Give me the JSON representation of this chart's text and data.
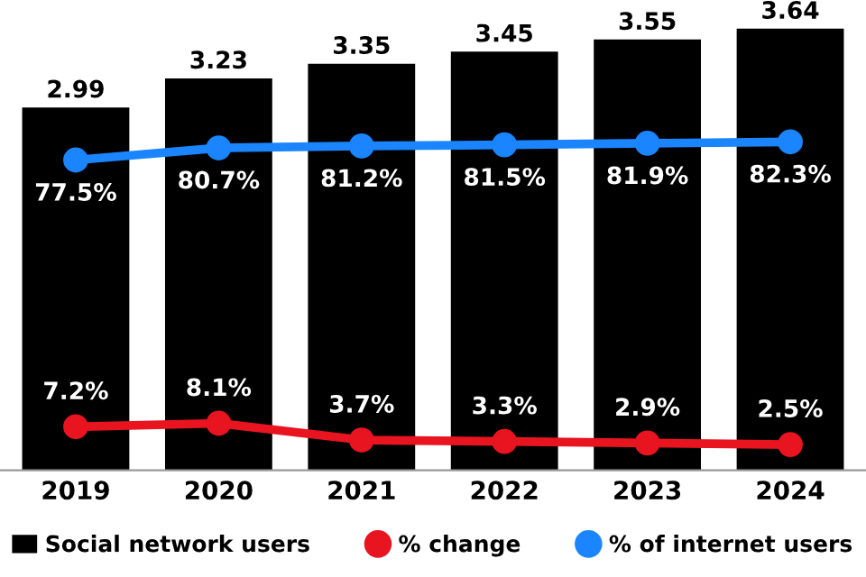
{
  "chart_data": {
    "type": "bar",
    "categories": [
      "2019",
      "2020",
      "2021",
      "2022",
      "2023",
      "2024"
    ],
    "series": [
      {
        "name": "Social network users",
        "color": "#000000",
        "values": [
          2.99,
          3.23,
          3.35,
          3.45,
          3.55,
          3.64
        ]
      },
      {
        "name": "% change",
        "type": "line",
        "axis": "y2",
        "color": "#e8141f",
        "marker": "circle",
        "values": [
          7.2,
          8.1,
          3.7,
          3.3,
          2.9,
          2.5
        ],
        "value_labels": [
          "7.2%",
          "8.1%",
          "3.7%",
          "3.3%",
          "2.9%",
          "2.5%"
        ]
      },
      {
        "name": "% of internet users",
        "type": "line",
        "axis": "y2",
        "color": "#1a85ff",
        "marker": "circle",
        "values": [
          77.5,
          80.7,
          81.2,
          81.5,
          81.9,
          82.3
        ],
        "value_labels": [
          "77.5%",
          "80.7%",
          "81.2%",
          "81.5%",
          "81.9%",
          "82.3%"
        ]
      }
    ],
    "data_labels": true,
    "legend": "bottom",
    "grid": false,
    "tick_labels": "x"
  }
}
